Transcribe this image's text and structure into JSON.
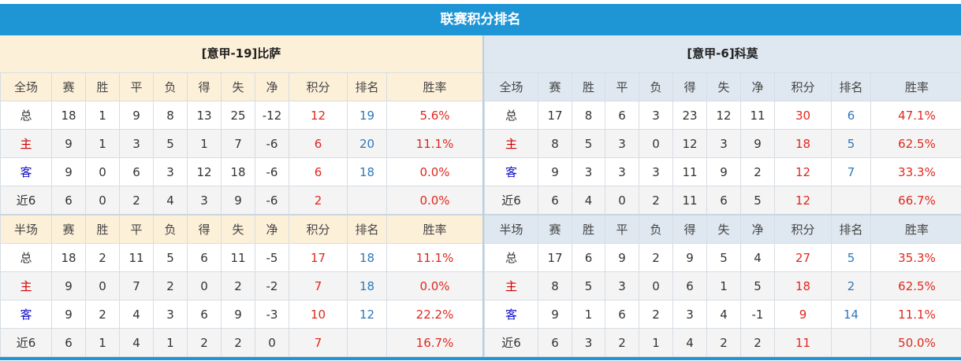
{
  "title": "联赛积分排名",
  "headers": {
    "full": [
      "全场",
      "赛",
      "胜",
      "平",
      "负",
      "得",
      "失",
      "净",
      "积分",
      "排名",
      "胜率"
    ],
    "half": [
      "半场",
      "赛",
      "胜",
      "平",
      "负",
      "得",
      "失",
      "净",
      "积分",
      "排名",
      "胜率"
    ]
  },
  "colors": {
    "accent": "#1e96d6",
    "points": "#e0281e",
    "rank": "#2f78b8",
    "home": "#d00000",
    "away": "#1010c8"
  },
  "teams": [
    {
      "name": "[意甲-19]比萨",
      "full": [
        [
          "总",
          "18",
          "1",
          "9",
          "8",
          "13",
          "25",
          "-12",
          "12",
          "19",
          "5.6%"
        ],
        [
          "主",
          "9",
          "1",
          "3",
          "5",
          "1",
          "7",
          "-6",
          "6",
          "20",
          "11.1%"
        ],
        [
          "客",
          "9",
          "0",
          "6",
          "3",
          "12",
          "18",
          "-6",
          "6",
          "18",
          "0.0%"
        ],
        [
          "近6",
          "6",
          "0",
          "2",
          "4",
          "3",
          "9",
          "-6",
          "2",
          "",
          "0.0%"
        ]
      ],
      "half": [
        [
          "总",
          "18",
          "2",
          "11",
          "5",
          "6",
          "11",
          "-5",
          "17",
          "18",
          "11.1%"
        ],
        [
          "主",
          "9",
          "0",
          "7",
          "2",
          "0",
          "2",
          "-2",
          "7",
          "18",
          "0.0%"
        ],
        [
          "客",
          "9",
          "2",
          "4",
          "3",
          "6",
          "9",
          "-3",
          "10",
          "12",
          "22.2%"
        ],
        [
          "近6",
          "6",
          "1",
          "4",
          "1",
          "2",
          "2",
          "0",
          "7",
          "",
          "16.7%"
        ]
      ]
    },
    {
      "name": "[意甲-6]科莫",
      "full": [
        [
          "总",
          "17",
          "8",
          "6",
          "3",
          "23",
          "12",
          "11",
          "30",
          "6",
          "47.1%"
        ],
        [
          "主",
          "8",
          "5",
          "3",
          "0",
          "12",
          "3",
          "9",
          "18",
          "5",
          "62.5%"
        ],
        [
          "客",
          "9",
          "3",
          "3",
          "3",
          "11",
          "9",
          "2",
          "12",
          "7",
          "33.3%"
        ],
        [
          "近6",
          "6",
          "4",
          "0",
          "2",
          "11",
          "6",
          "5",
          "12",
          "",
          "66.7%"
        ]
      ],
      "half": [
        [
          "总",
          "17",
          "6",
          "9",
          "2",
          "9",
          "5",
          "4",
          "27",
          "5",
          "35.3%"
        ],
        [
          "主",
          "8",
          "5",
          "3",
          "0",
          "6",
          "1",
          "5",
          "18",
          "2",
          "62.5%"
        ],
        [
          "客",
          "9",
          "1",
          "6",
          "2",
          "3",
          "4",
          "-1",
          "9",
          "14",
          "11.1%"
        ],
        [
          "近6",
          "6",
          "3",
          "2",
          "1",
          "4",
          "2",
          "2",
          "11",
          "",
          "50.0%"
        ]
      ]
    }
  ]
}
